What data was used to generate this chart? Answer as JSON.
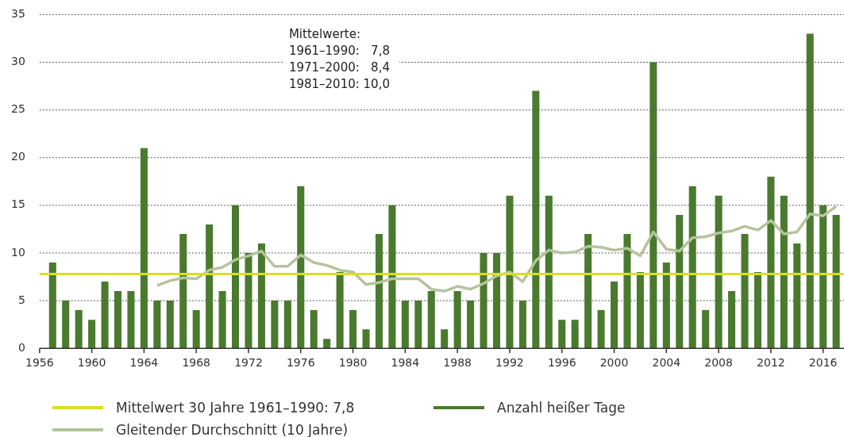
{
  "chart_data": {
    "type": "bar",
    "x": [
      1957,
      1958,
      1959,
      1960,
      1961,
      1962,
      1963,
      1964,
      1965,
      1966,
      1967,
      1968,
      1969,
      1970,
      1971,
      1972,
      1973,
      1974,
      1975,
      1976,
      1977,
      1978,
      1979,
      1980,
      1981,
      1982,
      1983,
      1984,
      1985,
      1986,
      1987,
      1988,
      1989,
      1990,
      1991,
      1992,
      1993,
      1994,
      1995,
      1996,
      1997,
      1998,
      1999,
      2000,
      2001,
      2002,
      2003,
      2004,
      2005,
      2006,
      2007,
      2008,
      2009,
      2010,
      2011,
      2012,
      2013,
      2014,
      2015,
      2016,
      2017
    ],
    "series": [
      {
        "name": "Anzahl heißer Tage",
        "color": "#4a7a2e",
        "values": [
          9,
          5,
          4,
          3,
          7,
          6,
          6,
          21,
          5,
          5,
          12,
          4,
          13,
          6,
          15,
          10,
          11,
          5,
          5,
          17,
          4,
          1,
          8,
          4,
          2,
          12,
          15,
          5,
          5,
          6,
          2,
          6,
          5,
          10,
          10,
          16,
          5,
          27,
          16,
          3,
          3,
          12,
          4,
          7,
          12,
          8,
          30,
          9,
          14,
          17,
          4,
          16,
          6,
          12,
          8,
          18,
          16,
          11,
          33,
          15,
          14
        ]
      },
      {
        "type": "line",
        "name": "Gleitender Durchschnitt (10 Jahre)",
        "color": "#b5c49c",
        "x": [
          1965,
          1966,
          1967,
          1968,
          1969,
          1970,
          1971,
          1972,
          1973,
          1974,
          1975,
          1976,
          1977,
          1978,
          1979,
          1980,
          1981,
          1982,
          1983,
          1984,
          1985,
          1986,
          1987,
          1988,
          1989,
          1990,
          1991,
          1992,
          1993,
          1994,
          1995,
          1996,
          1997,
          1998,
          1999,
          2000,
          2001,
          2002,
          2003,
          2004,
          2005,
          2006,
          2007,
          2008,
          2009,
          2010,
          2011,
          2012,
          2013,
          2014,
          2015,
          2016,
          2017
        ],
        "values": [
          6.6,
          7.1,
          7.4,
          7.3,
          8.2,
          8.5,
          9.3,
          9.7,
          10.2,
          8.6,
          8.6,
          9.8,
          9.0,
          8.7,
          8.2,
          8.0,
          6.7,
          6.9,
          7.3,
          7.3,
          7.3,
          6.2,
          6.0,
          6.5,
          6.2,
          6.8,
          7.6,
          8.0,
          7.0,
          9.2,
          10.3,
          10.0,
          10.1,
          10.7,
          10.6,
          10.3,
          10.5,
          9.7,
          12.2,
          10.4,
          10.2,
          11.6,
          11.7,
          12.1,
          12.3,
          12.8,
          12.4,
          13.4,
          12.0,
          12.2,
          14.1,
          13.9,
          14.9
        ]
      }
    ],
    "xlim": [
      1956,
      2017.6
    ],
    "xticks": [
      1956,
      1960,
      1964,
      1968,
      1972,
      1976,
      1980,
      1984,
      1988,
      1992,
      1996,
      2000,
      2004,
      2008,
      2012,
      2016
    ],
    "ylim": [
      0,
      35
    ],
    "yticks": [
      0,
      5,
      10,
      15,
      20,
      25,
      30,
      35
    ],
    "grid": "y",
    "legend": "bottom",
    "ref_lines": [
      {
        "axis": "y",
        "value": 7.8,
        "label": "Mittelwert 30 Jahre 1961–1990: 7,8",
        "color": "#d9e021"
      }
    ],
    "annotations": [
      "Mittelwerte:",
      "1961–1990:   7,8",
      "1971–2000:   8,4",
      "1981–2010: 10,0"
    ]
  }
}
